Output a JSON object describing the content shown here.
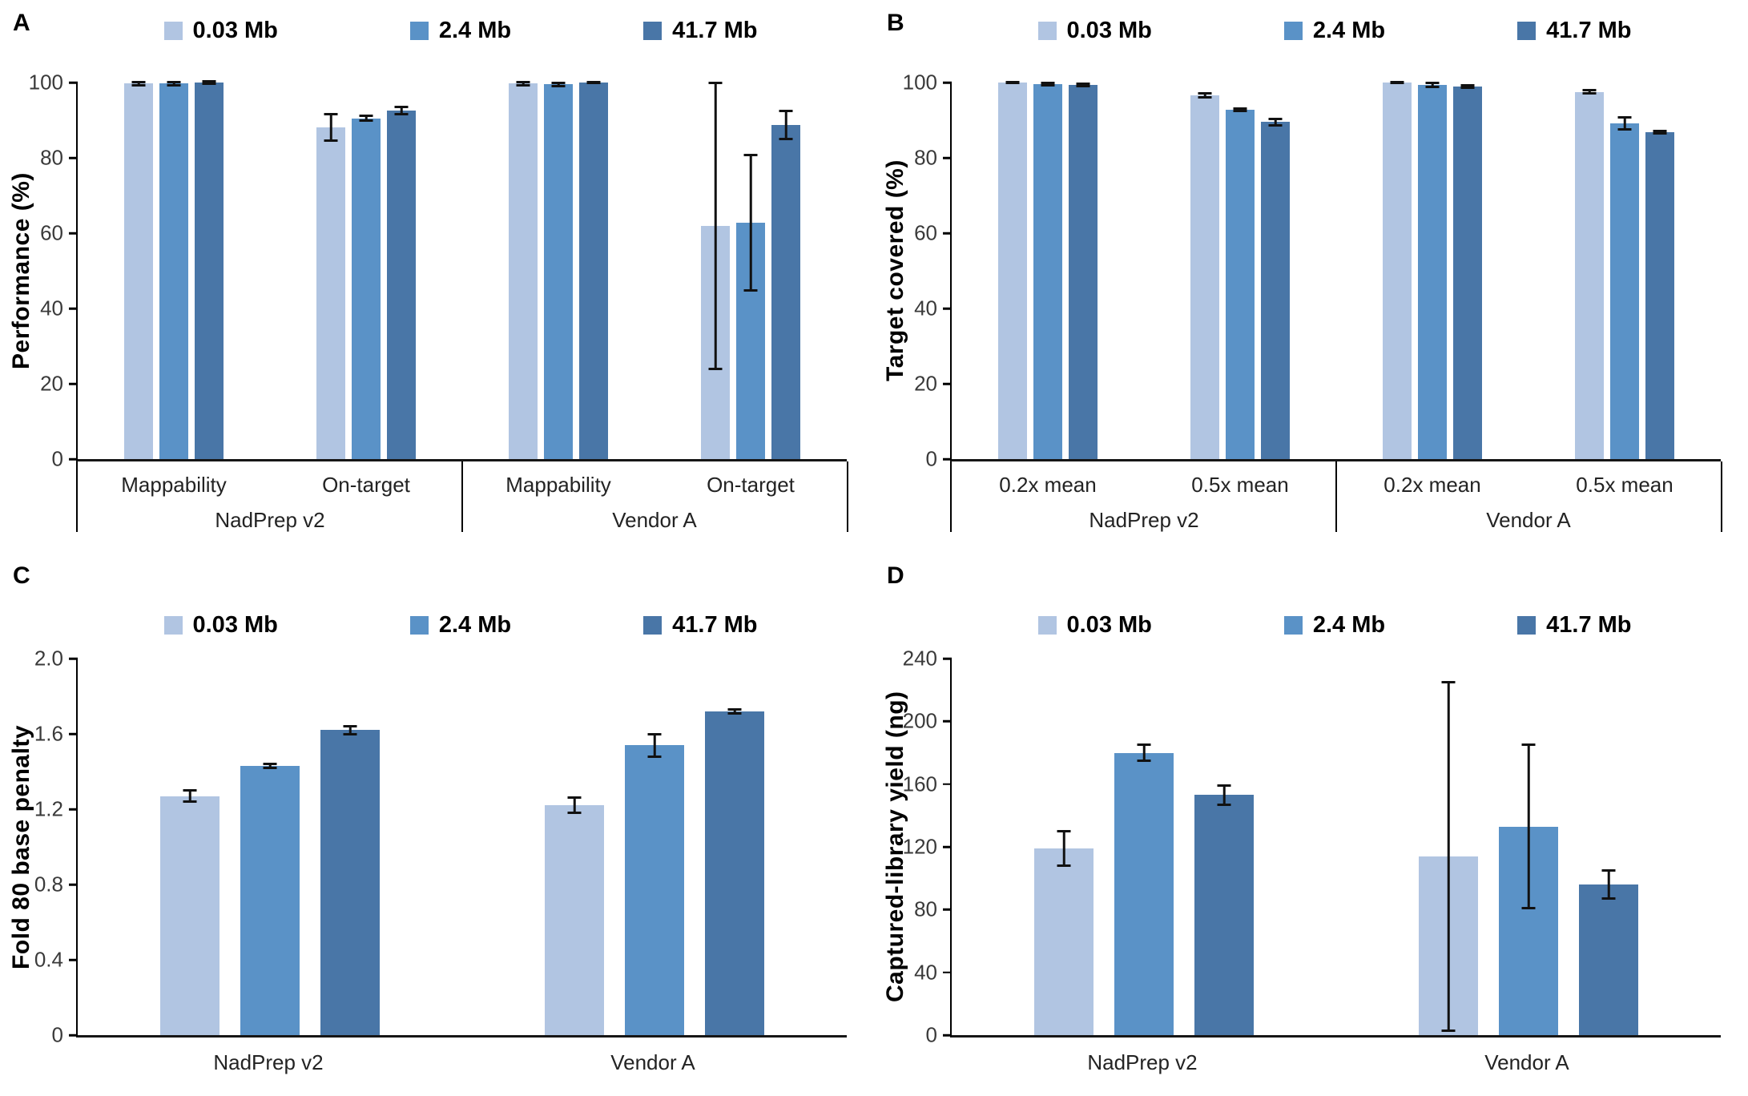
{
  "legend": {
    "items": [
      {
        "label": "0.03 Mb",
        "color": "#b1c5e2"
      },
      {
        "label": "2.4 Mb",
        "color": "#5a92c7"
      },
      {
        "label": "41.7 Mb",
        "color": "#4976a7"
      }
    ]
  },
  "chart_data": [
    {
      "panel_label": "A",
      "type": "bar",
      "title": "",
      "ylabel": "Performance (%)",
      "ymax": 100,
      "ylim": [
        0,
        100
      ],
      "yticks": [
        {
          "label": "100",
          "value": 100
        },
        {
          "label": "80",
          "value": 80
        },
        {
          "label": "60",
          "value": 60
        },
        {
          "label": "40",
          "value": 40
        },
        {
          "label": "20",
          "value": 20
        },
        {
          "label": "0",
          "value": 0
        }
      ],
      "categories": [
        "Mappability",
        "On-target",
        "Mappability",
        "On-target"
      ],
      "group_labels": [
        "NadPrep v2",
        "Vendor A"
      ],
      "axis_style": "table",
      "legend_position": "top",
      "grid": false,
      "series": [
        {
          "name": "0.03 Mb",
          "values": [
            99.7,
            88.0,
            99.7,
            62.0
          ],
          "errors": [
            0.4,
            3.5,
            0.4,
            38.0
          ]
        },
        {
          "name": "2.4 Mb",
          "values": [
            99.7,
            90.5,
            99.5,
            62.8
          ],
          "errors": [
            0.4,
            0.6,
            0.4,
            18.0
          ]
        },
        {
          "name": "41.7 Mb",
          "values": [
            100.0,
            92.5,
            100.0,
            88.8
          ],
          "errors": [
            0.3,
            1.0,
            0.2,
            3.7
          ]
        }
      ]
    },
    {
      "panel_label": "B",
      "type": "bar",
      "title": "",
      "ylabel": "Target covered (%)",
      "ymax": 100,
      "ylim": [
        0,
        100
      ],
      "yticks": [
        {
          "label": "100",
          "value": 100
        },
        {
          "label": "80",
          "value": 80
        },
        {
          "label": "60",
          "value": 60
        },
        {
          "label": "40",
          "value": 40
        },
        {
          "label": "20",
          "value": 20
        },
        {
          "label": "0",
          "value": 0
        }
      ],
      "categories": [
        "0.2x mean",
        "0.5x mean",
        "0.2x mean",
        "0.5x mean"
      ],
      "group_labels": [
        "NadPrep v2",
        "Vendor A"
      ],
      "axis_style": "table",
      "legend_position": "top",
      "grid": false,
      "series": [
        {
          "name": "0.03 Mb",
          "values": [
            100.0,
            96.6,
            100.0,
            97.5
          ],
          "errors": [
            0.2,
            0.6,
            0.2,
            0.4
          ]
        },
        {
          "name": "2.4 Mb",
          "values": [
            99.6,
            92.8,
            99.3,
            89.2
          ],
          "errors": [
            0.3,
            0.3,
            0.5,
            1.6
          ]
        },
        {
          "name": "41.7 Mb",
          "values": [
            99.3,
            89.5,
            99.0,
            86.8
          ],
          "errors": [
            0.3,
            0.9,
            0.3,
            0.3
          ]
        }
      ]
    },
    {
      "panel_label": "C",
      "type": "bar",
      "title": "",
      "ylabel": "Fold 80 base penalty",
      "ymax": 2.0,
      "ylim": [
        0,
        2.0
      ],
      "yticks": [
        {
          "label": "2.0",
          "value": 2.0
        },
        {
          "label": "1.6",
          "value": 1.6
        },
        {
          "label": "1.2",
          "value": 1.2
        },
        {
          "label": "0.8",
          "value": 0.8
        },
        {
          "label": "0.4",
          "value": 0.4
        },
        {
          "label": "0",
          "value": 0
        }
      ],
      "categories": [
        "NadPrep v2",
        "Vendor A"
      ],
      "group_labels": [],
      "axis_style": "plain",
      "legend_position": "top",
      "grid": false,
      "series": [
        {
          "name": "0.03 Mb",
          "values": [
            1.27,
            1.22
          ],
          "errors": [
            0.03,
            0.04
          ]
        },
        {
          "name": "2.4 Mb",
          "values": [
            1.43,
            1.54
          ],
          "errors": [
            0.01,
            0.06
          ]
        },
        {
          "name": "41.7 Mb",
          "values": [
            1.62,
            1.72
          ],
          "errors": [
            0.02,
            0.01
          ]
        }
      ]
    },
    {
      "panel_label": "D",
      "type": "bar",
      "title": "",
      "ylabel": "Captured-library yield (ng)",
      "ymax": 240,
      "ylim": [
        0,
        240
      ],
      "yticks": [
        {
          "label": "240",
          "value": 240
        },
        {
          "label": "200",
          "value": 200
        },
        {
          "label": "160",
          "value": 160
        },
        {
          "label": "120",
          "value": 120
        },
        {
          "label": "80",
          "value": 80
        },
        {
          "label": "40",
          "value": 40
        },
        {
          "label": "0",
          "value": 0
        }
      ],
      "categories": [
        "NadPrep v2",
        "Vendor A"
      ],
      "group_labels": [],
      "axis_style": "plain",
      "legend_position": "top",
      "grid": false,
      "series": [
        {
          "name": "0.03 Mb",
          "values": [
            119,
            114
          ],
          "errors": [
            11,
            111
          ]
        },
        {
          "name": "2.4 Mb",
          "values": [
            180,
            133
          ],
          "errors": [
            5,
            52
          ]
        },
        {
          "name": "41.7 Mb",
          "values": [
            153,
            96
          ],
          "errors": [
            6,
            9
          ]
        }
      ]
    }
  ]
}
